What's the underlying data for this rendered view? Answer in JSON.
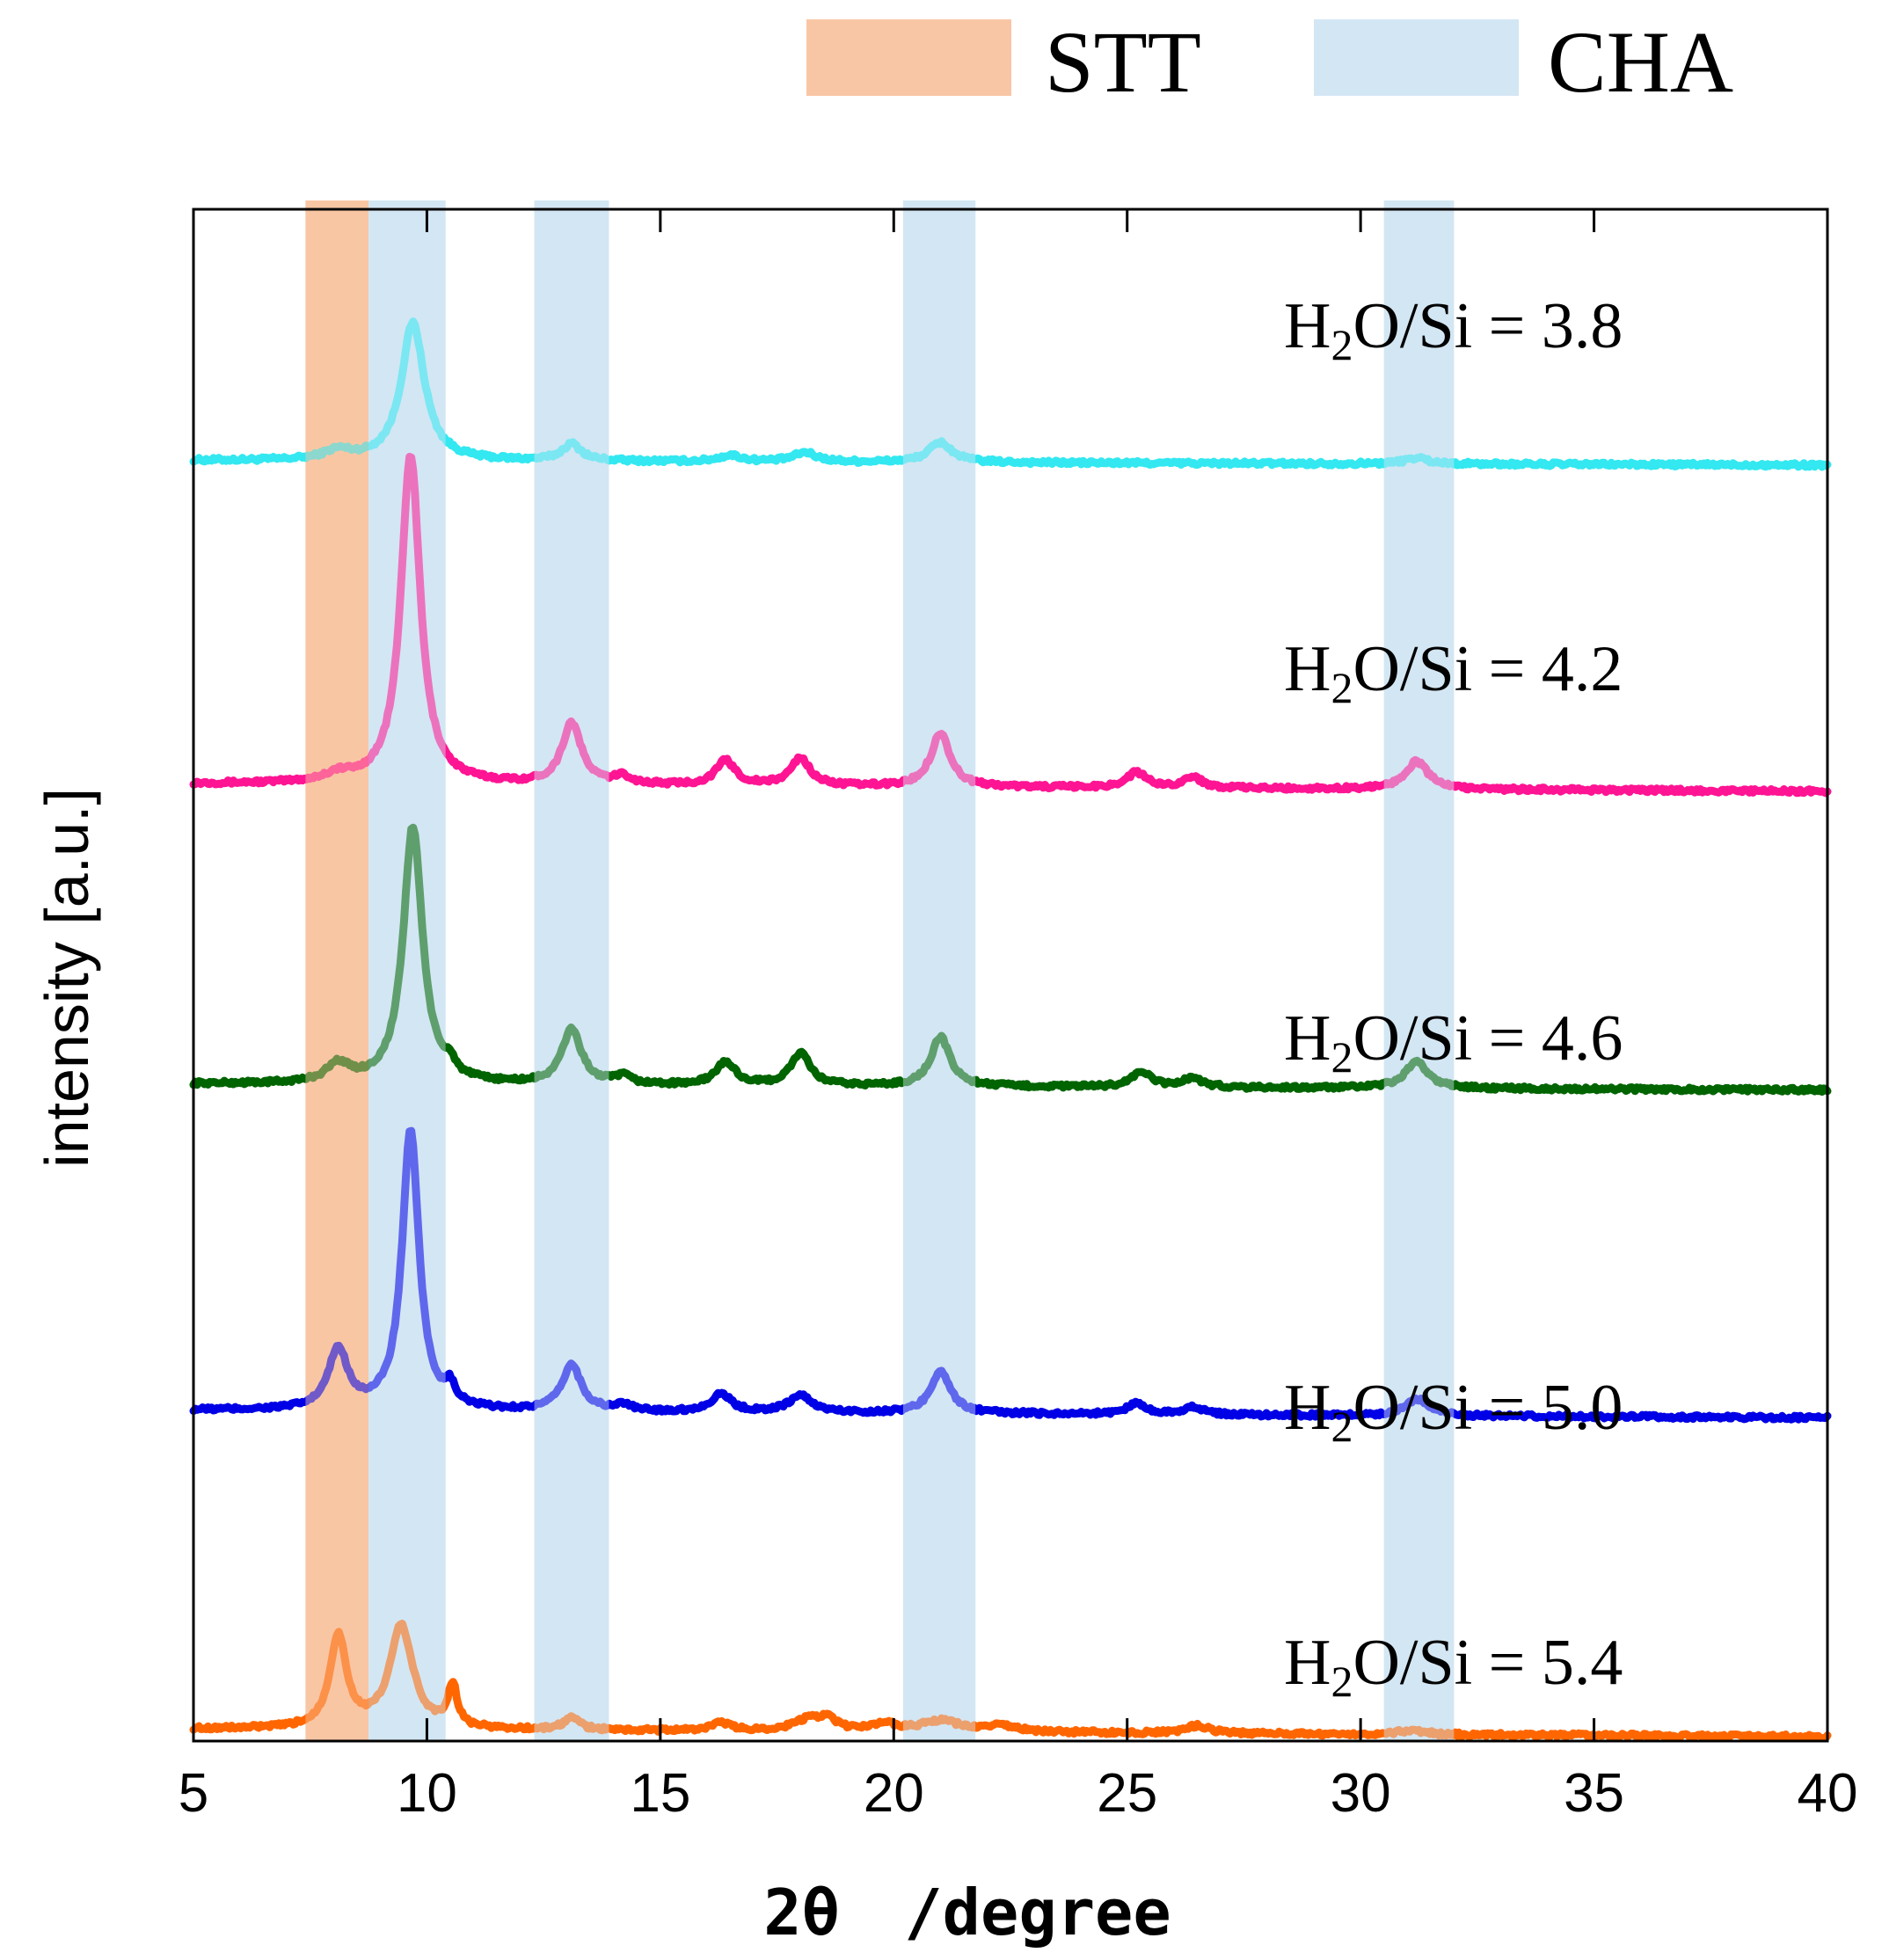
{
  "chart_data": {
    "type": "line",
    "title": "",
    "xlabel_main": "2θ",
    "xlabel_unit": "/degree",
    "ylabel": "intensity [a.u.]",
    "xlim": [
      5,
      40
    ],
    "ylim": [
      0,
      100
    ],
    "x_ticks": [
      5,
      10,
      15,
      20,
      25,
      30,
      35,
      40
    ],
    "x_tick_labels": [
      "5",
      "10",
      "15",
      "20",
      "25",
      "30",
      "35",
      "40"
    ],
    "legend": [
      {
        "label": "STT",
        "color": "#f9c6a5"
      },
      {
        "label": "CHA",
        "color": "#d3e6f3"
      }
    ],
    "bands": [
      {
        "phase": "STT",
        "x_start": 7.4,
        "x_end": 8.75
      },
      {
        "phase": "CHA",
        "x_start": 8.75,
        "x_end": 10.4
      },
      {
        "phase": "CHA",
        "x_start": 12.3,
        "x_end": 13.9
      },
      {
        "phase": "CHA",
        "x_start": 20.2,
        "x_end": 21.75
      },
      {
        "phase": "CHA",
        "x_start": 30.5,
        "x_end": 32.0
      }
    ],
    "series": [
      {
        "name": "H2O/Si = 3.8",
        "label_prefix": "H",
        "label_sub": "2",
        "label_suffix": "O/Si = 3.8",
        "color": "#33e8f0",
        "baseline": 83.6,
        "baseline_end": 83.3,
        "peaks": [
          [
            8.1,
            0.6,
            0.35
          ],
          [
            9.7,
            9.0,
            0.3
          ],
          [
            13.1,
            1.1,
            0.25
          ],
          [
            16.5,
            0.4,
            0.3
          ],
          [
            18.1,
            0.6,
            0.3
          ],
          [
            21.0,
            1.3,
            0.3
          ],
          [
            31.2,
            0.4,
            0.3
          ]
        ]
      },
      {
        "name": "H2O/Si = 4.2",
        "label_prefix": "H",
        "label_sub": "2",
        "label_suffix": "O/Si = 4.2",
        "color": "#ff1493",
        "baseline": 62.5,
        "baseline_end": 62.0,
        "peaks": [
          [
            8.1,
            0.5,
            0.35
          ],
          [
            9.65,
            21.5,
            0.25
          ],
          [
            13.1,
            4.0,
            0.25
          ],
          [
            14.2,
            0.5,
            0.2
          ],
          [
            16.4,
            1.6,
            0.25
          ],
          [
            18.0,
            1.8,
            0.25
          ],
          [
            21.0,
            3.5,
            0.25
          ],
          [
            25.2,
            1.0,
            0.25
          ],
          [
            26.4,
            0.7,
            0.25
          ],
          [
            31.2,
            1.8,
            0.3
          ]
        ]
      },
      {
        "name": "H2O/Si = 4.6",
        "label_prefix": "H",
        "label_sub": "2",
        "label_suffix": "O/Si = 4.6",
        "color": "#006400",
        "baseline": 42.9,
        "baseline_end": 42.5,
        "peaks": [
          [
            8.1,
            1.2,
            0.3
          ],
          [
            9.7,
            16.8,
            0.25
          ],
          [
            10.5,
            0.8,
            0.12
          ],
          [
            13.1,
            3.6,
            0.25
          ],
          [
            14.2,
            0.5,
            0.2
          ],
          [
            16.4,
            1.5,
            0.25
          ],
          [
            18.0,
            2.1,
            0.25
          ],
          [
            21.0,
            3.2,
            0.25
          ],
          [
            25.3,
            1.0,
            0.25
          ],
          [
            26.4,
            0.6,
            0.25
          ],
          [
            31.2,
            1.7,
            0.3
          ]
        ]
      },
      {
        "name": "H2O/Si = 5.0",
        "label_prefix": "H",
        "label_sub": "2",
        "label_suffix": "O/Si = 5.0",
        "color": "#0000e6",
        "baseline": 21.6,
        "baseline_end": 21.1,
        "peaks": [
          [
            8.1,
            3.9,
            0.25
          ],
          [
            9.65,
            18.2,
            0.22
          ],
          [
            10.5,
            1.1,
            0.12
          ],
          [
            13.1,
            3.0,
            0.25
          ],
          [
            14.2,
            0.4,
            0.2
          ],
          [
            16.3,
            1.2,
            0.25
          ],
          [
            18.0,
            1.1,
            0.3
          ],
          [
            21.0,
            2.8,
            0.25
          ],
          [
            25.2,
            0.7,
            0.25
          ],
          [
            26.4,
            0.5,
            0.25
          ],
          [
            31.2,
            1.1,
            0.3
          ]
        ]
      },
      {
        "name": "H2O/Si = 5.4",
        "label_prefix": "H",
        "label_sub": "2",
        "label_suffix": "O/Si = 5.4",
        "color": "#ff6600",
        "baseline": 0.8,
        "baseline_end": 0.3,
        "peaks": [
          [
            8.1,
            6.0,
            0.22
          ],
          [
            9.45,
            6.7,
            0.3
          ],
          [
            10.55,
            2.7,
            0.12
          ],
          [
            13.1,
            0.8,
            0.2
          ],
          [
            16.3,
            0.5,
            0.25
          ],
          [
            18.2,
            0.8,
            0.4
          ],
          [
            18.6,
            0.6,
            0.2
          ],
          [
            19.8,
            0.5,
            0.3
          ],
          [
            21.0,
            0.7,
            0.5
          ],
          [
            22.3,
            0.4,
            0.4
          ],
          [
            26.5,
            0.5,
            0.3
          ],
          [
            31.1,
            0.3,
            0.3
          ]
        ]
      }
    ]
  }
}
